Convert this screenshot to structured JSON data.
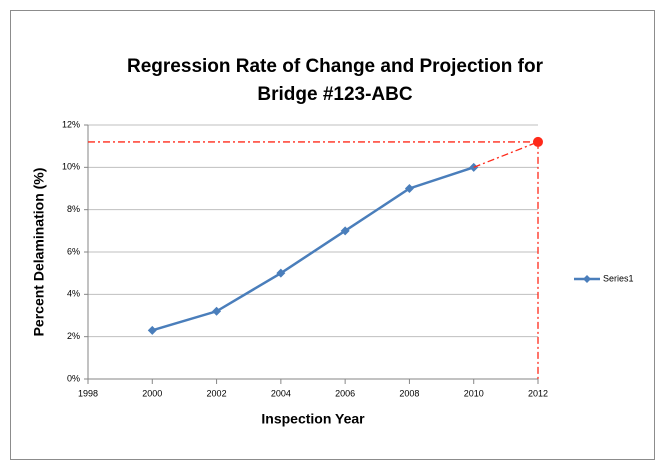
{
  "chart_data": {
    "type": "line",
    "title": "Regression Rate of Change and Projection for Bridge #123-ABC",
    "x_label": "Inspection Year",
    "y_label": "Percent Delamination (%)",
    "x": [
      2000,
      2002,
      2004,
      2006,
      2008,
      2010
    ],
    "series": [
      {
        "name": "Series1",
        "color": "#4a7ebb",
        "values": [
          2.3,
          3.2,
          5,
          7,
          9,
          10
        ]
      }
    ],
    "projection": {
      "x": 2012,
      "y": 11.2,
      "color": "#ff2a1a"
    },
    "xlim": [
      1998,
      2012
    ],
    "xticks": [
      1998,
      2000,
      2002,
      2004,
      2006,
      2008,
      2010,
      2012
    ],
    "ylim": [
      0,
      12
    ],
    "yticks": [
      {
        "value": 0,
        "label": "0%"
      },
      {
        "value": 2,
        "label": "2%"
      },
      {
        "value": 4,
        "label": "4%"
      },
      {
        "value": 6,
        "label": "6%"
      },
      {
        "value": 8,
        "label": "8%"
      },
      {
        "value": 10,
        "label": "10%"
      },
      {
        "value": 12,
        "label": "12%"
      }
    ],
    "grid": true,
    "legend": "right"
  }
}
